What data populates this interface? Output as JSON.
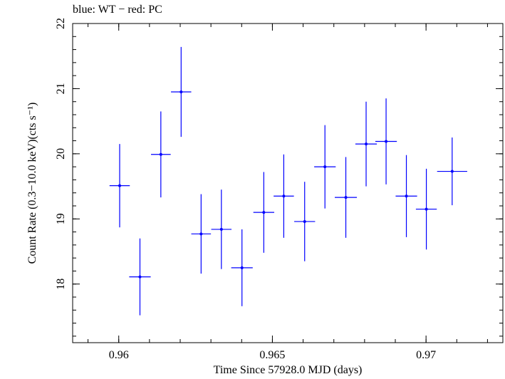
{
  "chart_data": {
    "type": "scatter",
    "title": "blue: WT − red: PC",
    "xlabel": "Time Since 57928.0 MJD (days)",
    "ylabel": "Count Rate (0.3−10.0 keV)(cts s⁻¹)",
    "xlim": [
      0.9585,
      0.9725
    ],
    "ylim": [
      17.1,
      22.0
    ],
    "x_ticks": [
      {
        "value": 0.96,
        "label": "0.96"
      },
      {
        "value": 0.965,
        "label": "0.965"
      },
      {
        "value": 0.97,
        "label": "0.97"
      }
    ],
    "y_ticks": [
      {
        "value": 18,
        "label": "18"
      },
      {
        "value": 19,
        "label": "19"
      },
      {
        "value": 20,
        "label": "20"
      },
      {
        "value": 21,
        "label": "21"
      },
      {
        "value": 22,
        "label": "22"
      }
    ],
    "x_minor_step": 0.001,
    "y_minor_step": 0.2,
    "grid": false,
    "colors": {
      "wt": "#0000ff",
      "axes": "#000000"
    },
    "series": [
      {
        "color": "#0000ff",
        "points": [
          {
            "x": 0.96003,
            "y": 19.51,
            "xerr": 0.00033,
            "yerr": 0.64
          },
          {
            "x": 0.96069,
            "y": 18.11,
            "xerr": 0.00035,
            "yerr": 0.59
          },
          {
            "x": 0.96137,
            "y": 19.99,
            "xerr": 0.00032,
            "yerr": 0.66
          },
          {
            "x": 0.96203,
            "y": 20.95,
            "xerr": 0.00033,
            "yerr": 0.69
          },
          {
            "x": 0.96268,
            "y": 18.77,
            "xerr": 0.00032,
            "yerr": 0.61
          },
          {
            "x": 0.96334,
            "y": 18.84,
            "xerr": 0.00033,
            "yerr": 0.61
          },
          {
            "x": 0.96401,
            "y": 18.25,
            "xerr": 0.00035,
            "yerr": 0.59
          },
          {
            "x": 0.96472,
            "y": 19.1,
            "xerr": 0.00034,
            "yerr": 0.62
          },
          {
            "x": 0.96537,
            "y": 19.35,
            "xerr": 0.00033,
            "yerr": 0.64
          },
          {
            "x": 0.96605,
            "y": 18.96,
            "xerr": 0.00034,
            "yerr": 0.61
          },
          {
            "x": 0.96671,
            "y": 19.8,
            "xerr": 0.00035,
            "yerr": 0.64
          },
          {
            "x": 0.96739,
            "y": 19.33,
            "xerr": 0.00036,
            "yerr": 0.62
          },
          {
            "x": 0.96805,
            "y": 20.15,
            "xerr": 0.00035,
            "yerr": 0.65
          },
          {
            "x": 0.9687,
            "y": 20.19,
            "xerr": 0.00035,
            "yerr": 0.66
          },
          {
            "x": 0.96936,
            "y": 19.35,
            "xerr": 0.00035,
            "yerr": 0.63
          },
          {
            "x": 0.97001,
            "y": 19.15,
            "xerr": 0.00034,
            "yerr": 0.62
          },
          {
            "x": 0.97085,
            "y": 19.73,
            "xerr": 0.00049,
            "yerr": 0.52
          }
        ]
      }
    ]
  }
}
